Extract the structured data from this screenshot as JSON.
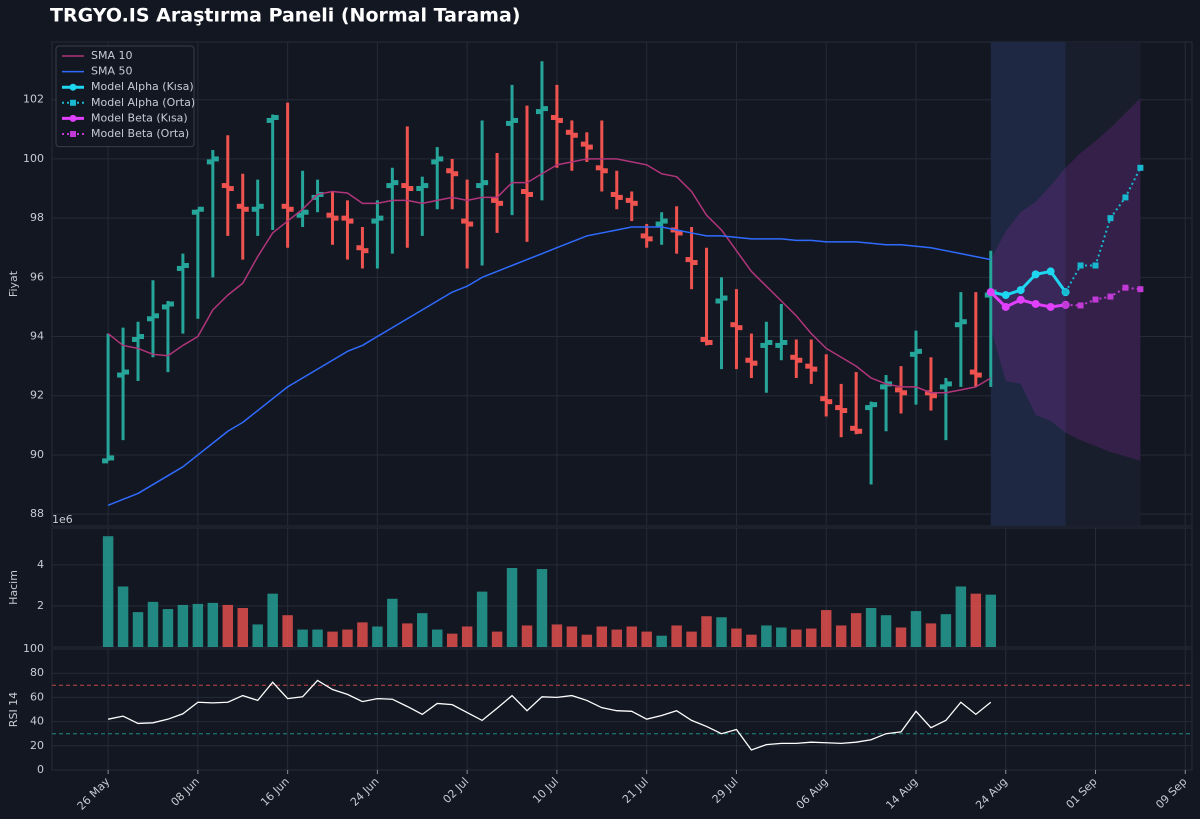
{
  "chart_data": [
    {
      "type": "ohlc",
      "title": "TRGYO.IS Araştırma Paneli (Normal Tarama)",
      "ylabel": "Fiyat",
      "xlim": [
        -3.75,
        72.45
      ],
      "ylim": [
        87.6,
        103.95
      ],
      "yticks": [
        88,
        90,
        92,
        94,
        96,
        98,
        100,
        102
      ],
      "grid": true,
      "legend": "upper left",
      "up_color": "#26a69a",
      "down_color": "#ef5350",
      "ohlc": {
        "open": [
          89.8,
          92.7,
          93.9,
          94.6,
          95.0,
          96.3,
          98.2,
          99.9,
          99.1,
          98.4,
          98.3,
          101.3,
          98.4,
          98.1,
          98.7,
          98.1,
          98.0,
          97.0,
          97.9,
          99.1,
          99.1,
          99.0,
          99.9,
          99.6,
          97.9,
          99.1,
          98.6,
          101.2,
          98.9,
          101.6,
          101.4,
          100.9,
          100.5,
          99.7,
          98.8,
          98.6,
          97.4,
          97.8,
          97.6,
          96.6,
          93.9,
          95.2,
          94.4,
          93.2,
          93.7,
          93.7,
          93.3,
          93.0,
          91.9,
          91.6,
          90.9,
          91.6,
          92.3,
          92.2,
          93.4,
          92.1,
          92.3,
          94.4,
          92.8,
          95.4
        ],
        "high": [
          94.1,
          94.3,
          94.5,
          95.9,
          95.2,
          96.8,
          98.3,
          100.3,
          100.8,
          99.5,
          99.3,
          101.5,
          101.9,
          99.6,
          99.3,
          98.9,
          98.6,
          97.7,
          98.6,
          99.7,
          101.1,
          99.4,
          100.4,
          100.0,
          99.3,
          101.3,
          100.2,
          102.5,
          101.8,
          103.3,
          102.5,
          101.3,
          100.9,
          101.3,
          99.6,
          98.9,
          97.8,
          98.2,
          98.4,
          97.7,
          97.0,
          96.0,
          95.6,
          94.1,
          94.5,
          95.1,
          93.9,
          93.9,
          93.4,
          92.4,
          92.8,
          91.8,
          92.7,
          93.0,
          94.2,
          93.3,
          92.6,
          95.5,
          95.5,
          96.9
        ],
        "low": [
          89.8,
          90.5,
          92.5,
          93.3,
          92.8,
          94.1,
          94.6,
          96.0,
          97.4,
          96.6,
          97.4,
          97.6,
          97.0,
          97.7,
          98.2,
          97.1,
          96.6,
          96.3,
          96.3,
          96.8,
          97.0,
          97.4,
          98.3,
          98.3,
          96.3,
          96.4,
          97.5,
          98.1,
          97.2,
          98.6,
          99.7,
          99.6,
          99.9,
          98.9,
          98.3,
          97.9,
          97.0,
          97.1,
          96.8,
          95.6,
          93.7,
          92.9,
          92.9,
          92.6,
          92.1,
          93.2,
          92.6,
          92.4,
          91.3,
          90.6,
          90.7,
          89.0,
          90.8,
          91.4,
          91.7,
          91.5,
          90.5,
          92.3,
          92.3,
          92.3
        ],
        "close": [
          89.9,
          92.8,
          94.0,
          94.7,
          95.1,
          96.4,
          98.3,
          100.0,
          99.0,
          98.3,
          98.4,
          101.4,
          98.3,
          98.2,
          98.8,
          98.0,
          97.9,
          96.9,
          98.0,
          99.2,
          99.0,
          99.1,
          100.0,
          99.5,
          97.8,
          99.2,
          98.5,
          101.3,
          98.8,
          101.7,
          101.3,
          100.8,
          100.4,
          99.6,
          98.7,
          98.5,
          97.3,
          97.9,
          97.5,
          96.5,
          93.8,
          95.3,
          94.3,
          93.1,
          93.8,
          93.8,
          93.2,
          92.9,
          91.8,
          91.5,
          90.8,
          91.7,
          92.4,
          92.1,
          93.5,
          92.0,
          92.4,
          94.5,
          92.7,
          95.5
        ]
      },
      "shaded_regions": [
        {
          "x": [
            59,
            64
          ],
          "color": "#1f2843"
        },
        {
          "x": [
            64,
            69
          ],
          "color": "#181e2c"
        }
      ],
      "band": {
        "color": "#9c27b0",
        "x": [
          59,
          60,
          61,
          62,
          63,
          64,
          65,
          66,
          67,
          68,
          69
        ],
        "upper": [
          96.6,
          97.55,
          98.2,
          98.55,
          99.1,
          99.7,
          100.2,
          100.6,
          101.05,
          101.55,
          102.05
        ],
        "lower": [
          94.3,
          92.5,
          92.4,
          91.35,
          91.15,
          90.75,
          90.5,
          90.3,
          90.1,
          89.95,
          89.8
        ]
      },
      "series": [
        {
          "name": "SMA 10",
          "color": "#b0357a",
          "style": "solid",
          "values": [
            94.1,
            93.7,
            93.6,
            93.4,
            93.35,
            93.7,
            94.0,
            94.9,
            95.4,
            95.8,
            96.7,
            97.5,
            97.9,
            98.3,
            98.8,
            98.9,
            98.85,
            98.5,
            98.5,
            98.6,
            98.6,
            98.5,
            98.6,
            98.7,
            98.6,
            98.7,
            98.7,
            99.2,
            99.2,
            99.5,
            99.8,
            99.9,
            100.0,
            100.0,
            100.0,
            99.9,
            99.8,
            99.5,
            99.4,
            98.9,
            98.1,
            97.6,
            96.9,
            96.2,
            95.7,
            95.2,
            94.7,
            94.1,
            93.6,
            93.3,
            93.0,
            92.6,
            92.4,
            92.3,
            92.3,
            92.1,
            92.1,
            92.2,
            92.3,
            92.6
          ]
        },
        {
          "name": "SMA 50",
          "color": "#2f6bff",
          "style": "solid",
          "values": [
            88.3,
            88.5,
            88.7,
            89.0,
            89.3,
            89.6,
            90.0,
            90.4,
            90.8,
            91.1,
            91.5,
            91.9,
            92.3,
            92.6,
            92.9,
            93.2,
            93.5,
            93.7,
            94.0,
            94.3,
            94.6,
            94.9,
            95.2,
            95.5,
            95.7,
            96.0,
            96.2,
            96.4,
            96.6,
            96.8,
            97.0,
            97.2,
            97.4,
            97.5,
            97.6,
            97.7,
            97.7,
            97.7,
            97.6,
            97.5,
            97.4,
            97.4,
            97.35,
            97.3,
            97.3,
            97.3,
            97.25,
            97.25,
            97.2,
            97.2,
            97.2,
            97.15,
            97.1,
            97.1,
            97.05,
            97.0,
            96.9,
            96.8,
            96.7,
            96.6
          ]
        },
        {
          "name": "Model Alpha (Kısa)",
          "color": "#1ed6f0",
          "style": "solid",
          "marker": "circle",
          "x": [
            59,
            60,
            61,
            62,
            63,
            64
          ],
          "values": [
            95.5,
            95.4,
            95.57,
            96.1,
            96.2,
            95.5
          ]
        },
        {
          "name": "Model Alpha (Orta)",
          "color": "#17b8d0",
          "style": "dotted",
          "marker": "square",
          "x": [
            64,
            65,
            66,
            67,
            68,
            69
          ],
          "values": [
            95.5,
            96.4,
            96.4,
            98.0,
            98.7,
            99.7
          ]
        },
        {
          "name": "Model Beta (Kısa)",
          "color": "#e040fb",
          "style": "solid",
          "marker": "circle",
          "x": [
            59,
            60,
            61,
            62,
            63,
            64
          ],
          "values": [
            95.5,
            95.0,
            95.24,
            95.1,
            95.0,
            95.07
          ]
        },
        {
          "name": "Model Beta (Orta)",
          "color": "#c23ad6",
          "style": "dotted",
          "marker": "square",
          "x": [
            64,
            65,
            66,
            67,
            68,
            69
          ],
          "values": [
            95.07,
            95.05,
            95.25,
            95.35,
            95.65,
            95.6
          ]
        }
      ]
    },
    {
      "type": "bar",
      "ylabel": "Hacim",
      "offset_label": "1e6",
      "xlim": [
        -3.75,
        72.45
      ],
      "ylim": [
        0,
        5800000
      ],
      "yticks": [
        {
          "value": 2000000,
          "label": "2"
        },
        {
          "value": 4000000,
          "label": "4"
        }
      ],
      "grid": true,
      "values": [
        5400000,
        2950000,
        1700000,
        2200000,
        1850000,
        2050000,
        2100000,
        2150000,
        2050000,
        1900000,
        1100000,
        2600000,
        1550000,
        850000,
        850000,
        750000,
        850000,
        1200000,
        1000000,
        2350000,
        1150000,
        1650000,
        850000,
        650000,
        1000000,
        2700000,
        750000,
        3850000,
        1050000,
        3800000,
        1100000,
        1000000,
        600000,
        1000000,
        850000,
        1000000,
        750000,
        550000,
        1050000,
        750000,
        1500000,
        1450000,
        900000,
        600000,
        1050000,
        950000,
        850000,
        900000,
        1800000,
        1050000,
        1650000,
        1900000,
        1550000,
        950000,
        1750000,
        1150000,
        1600000,
        2950000,
        2600000,
        2550000
      ]
    },
    {
      "type": "line",
      "ylabel": "RSI 14",
      "color": "#ffffff",
      "xlim": [
        -3.75,
        72.45
      ],
      "ylim": [
        0,
        100
      ],
      "yticks": [
        0,
        20,
        40,
        60,
        80,
        100
      ],
      "grid": true,
      "levels": [
        {
          "value": 70,
          "color": "#ef5350"
        },
        {
          "value": 30,
          "color": "#26a69a"
        }
      ],
      "xticks": [
        {
          "value": 0,
          "label": "26 May"
        },
        {
          "value": 6,
          "label": "08 Jun"
        },
        {
          "value": 12,
          "label": "16 Jun"
        },
        {
          "value": 18,
          "label": "24 Jun"
        },
        {
          "value": 24,
          "label": "02 Jul"
        },
        {
          "value": 30,
          "label": "10 Jul"
        },
        {
          "value": 36,
          "label": "21 Jul"
        },
        {
          "value": 42,
          "label": "29 Jul"
        },
        {
          "value": 48,
          "label": "06 Aug"
        },
        {
          "value": 54,
          "label": "14 Aug"
        },
        {
          "value": 60,
          "label": "24 Aug"
        },
        {
          "value": 66,
          "label": "01 Sep"
        },
        {
          "value": 72,
          "label": "09 Sep"
        }
      ],
      "values": [
        42,
        44.5,
        38.5,
        39,
        42,
        46.5,
        56,
        55.5,
        56,
        61.5,
        57.5,
        72.5,
        59,
        60.5,
        74,
        66.5,
        62.5,
        56.5,
        59,
        58.5,
        52.5,
        46,
        55,
        54,
        47.5,
        41,
        51,
        61.5,
        49,
        60.5,
        60,
        61.5,
        57.5,
        51.5,
        49,
        48.5,
        42,
        45,
        49,
        41,
        36,
        30,
        33.5,
        16.5,
        21,
        22,
        22,
        23,
        22.5,
        22,
        23,
        25,
        30,
        31.5,
        48.5,
        35,
        41,
        56,
        46,
        56
      ]
    }
  ]
}
